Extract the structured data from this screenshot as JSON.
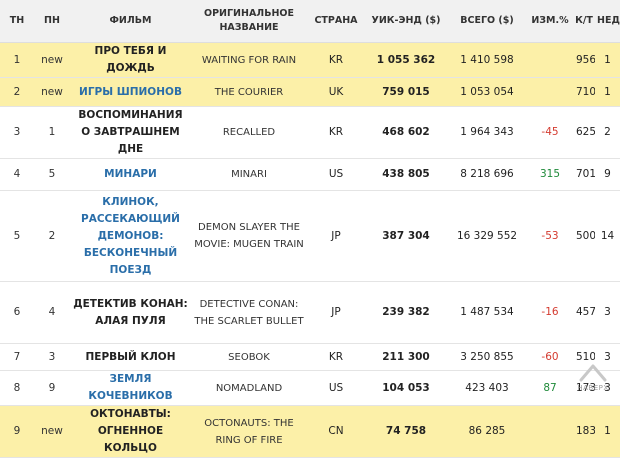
{
  "table": {
    "headers": {
      "rank": "ТН",
      "prev": "ПН",
      "film": "ФИЛЬМ",
      "original": "ОРИГИНАЛЬНОЕ НАЗВАНИЕ",
      "country": "СТРАНА",
      "weekend": "УИК-ЭНД ($)",
      "total": "ВСЕГО ($)",
      "change": "ИЗМ.%",
      "screens": "К/Т",
      "weeks": "НЕД."
    },
    "rows": [
      {
        "rank": "1",
        "prev": "new",
        "film": "ПРО ТЕБЯ И ДОЖДЬ",
        "original": "WAITING FOR RAIN",
        "country": "KR",
        "weekend": "1 055 362",
        "total": "1 410 598",
        "change": "",
        "screens": "956",
        "weeks": "1"
      },
      {
        "rank": "2",
        "prev": "new",
        "film": "ИГРЫ ШПИОНОВ",
        "original": "THE COURIER",
        "country": "UK",
        "weekend": "759 015",
        "total": "1 053 054",
        "change": "",
        "screens": "710",
        "weeks": "1"
      },
      {
        "rank": "3",
        "prev": "1",
        "film": "ВОСПОМИНАНИЯ О ЗАВТРАШНЕМ ДНЕ",
        "original": "RECALLED",
        "country": "KR",
        "weekend": "468 602",
        "total": "1 964 343",
        "change": "-45",
        "screens": "625",
        "weeks": "2"
      },
      {
        "rank": "4",
        "prev": "5",
        "film": "МИНАРИ",
        "original": "MINARI",
        "country": "US",
        "weekend": "438 805",
        "total": "8 218 696",
        "change": "315",
        "screens": "701",
        "weeks": "9"
      },
      {
        "rank": "5",
        "prev": "2",
        "film": "КЛИНОК, РАССЕКАЮЩИЙ ДЕМОНОВ: БЕСКОНЕЧНЫЙ ПОЕЗД",
        "original": "DEMON SLAYER THE MOVIE: MUGEN TRAIN",
        "country": "JP",
        "weekend": "387 304",
        "total": "16 329 552",
        "change": "-53",
        "screens": "500",
        "weeks": "14"
      },
      {
        "rank": "6",
        "prev": "4",
        "film": "ДЕТЕКТИВ КОНАН: АЛАЯ ПУЛЯ",
        "original": "DETECTIVE CONAN: THE SCARLET BULLET",
        "country": "JP",
        "weekend": "239 382",
        "total": "1 487 534",
        "change": "-16",
        "screens": "457",
        "weeks": "3"
      },
      {
        "rank": "7",
        "prev": "3",
        "film": "ПЕРВЫЙ КЛОН",
        "original": "SEOBOK",
        "country": "KR",
        "weekend": "211 300",
        "total": "3 250 855",
        "change": "-60",
        "screens": "510",
        "weeks": "3"
      },
      {
        "rank": "8",
        "prev": "9",
        "film": "ЗЕМЛЯ КОЧЕВНИКОВ",
        "original": "NOMADLAND",
        "country": "US",
        "weekend": "104 053",
        "total": "423 403",
        "change": "87",
        "screens": "173",
        "weeks": "3"
      },
      {
        "rank": "9",
        "prev": "new",
        "film": "ОКТОНАВТЫ: ОГНЕННОЕ КОЛЬЦО",
        "original": "OCTONAUTS: THE RING OF FIRE",
        "country": "CN",
        "weekend": "74 758",
        "total": "86 285",
        "change": "",
        "screens": "183",
        "weeks": "1"
      }
    ]
  },
  "scroll_top": {
    "label": "НАВЕРХ",
    "icon": "arrow-up-icon"
  },
  "colors": {
    "highlight": "#fcf0a8",
    "link": "#2a6ea9",
    "negative": "#d43a2f",
    "positive": "#1f8a3a"
  }
}
